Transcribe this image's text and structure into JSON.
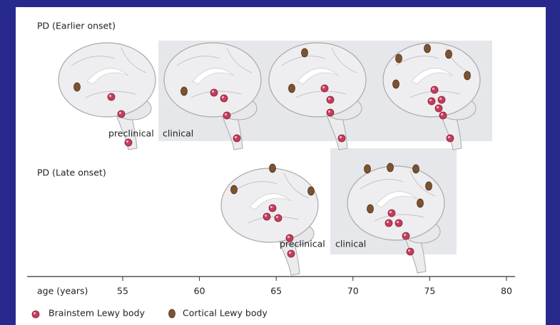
{
  "early": {
    "title": "PD (Earlier onset)",
    "preclinical": "preclinical",
    "clinical": "clinical"
  },
  "late": {
    "title": "PD (Late onset)",
    "preclinical": "preclinical",
    "clinical": "clinical"
  },
  "axis": {
    "label": "age (years)",
    "ticks": [
      55,
      60,
      65,
      70,
      75,
      80
    ]
  },
  "legend": {
    "brainstem": "Brainstem Lewy body",
    "cortical": "Cortical Lewy body"
  }
}
